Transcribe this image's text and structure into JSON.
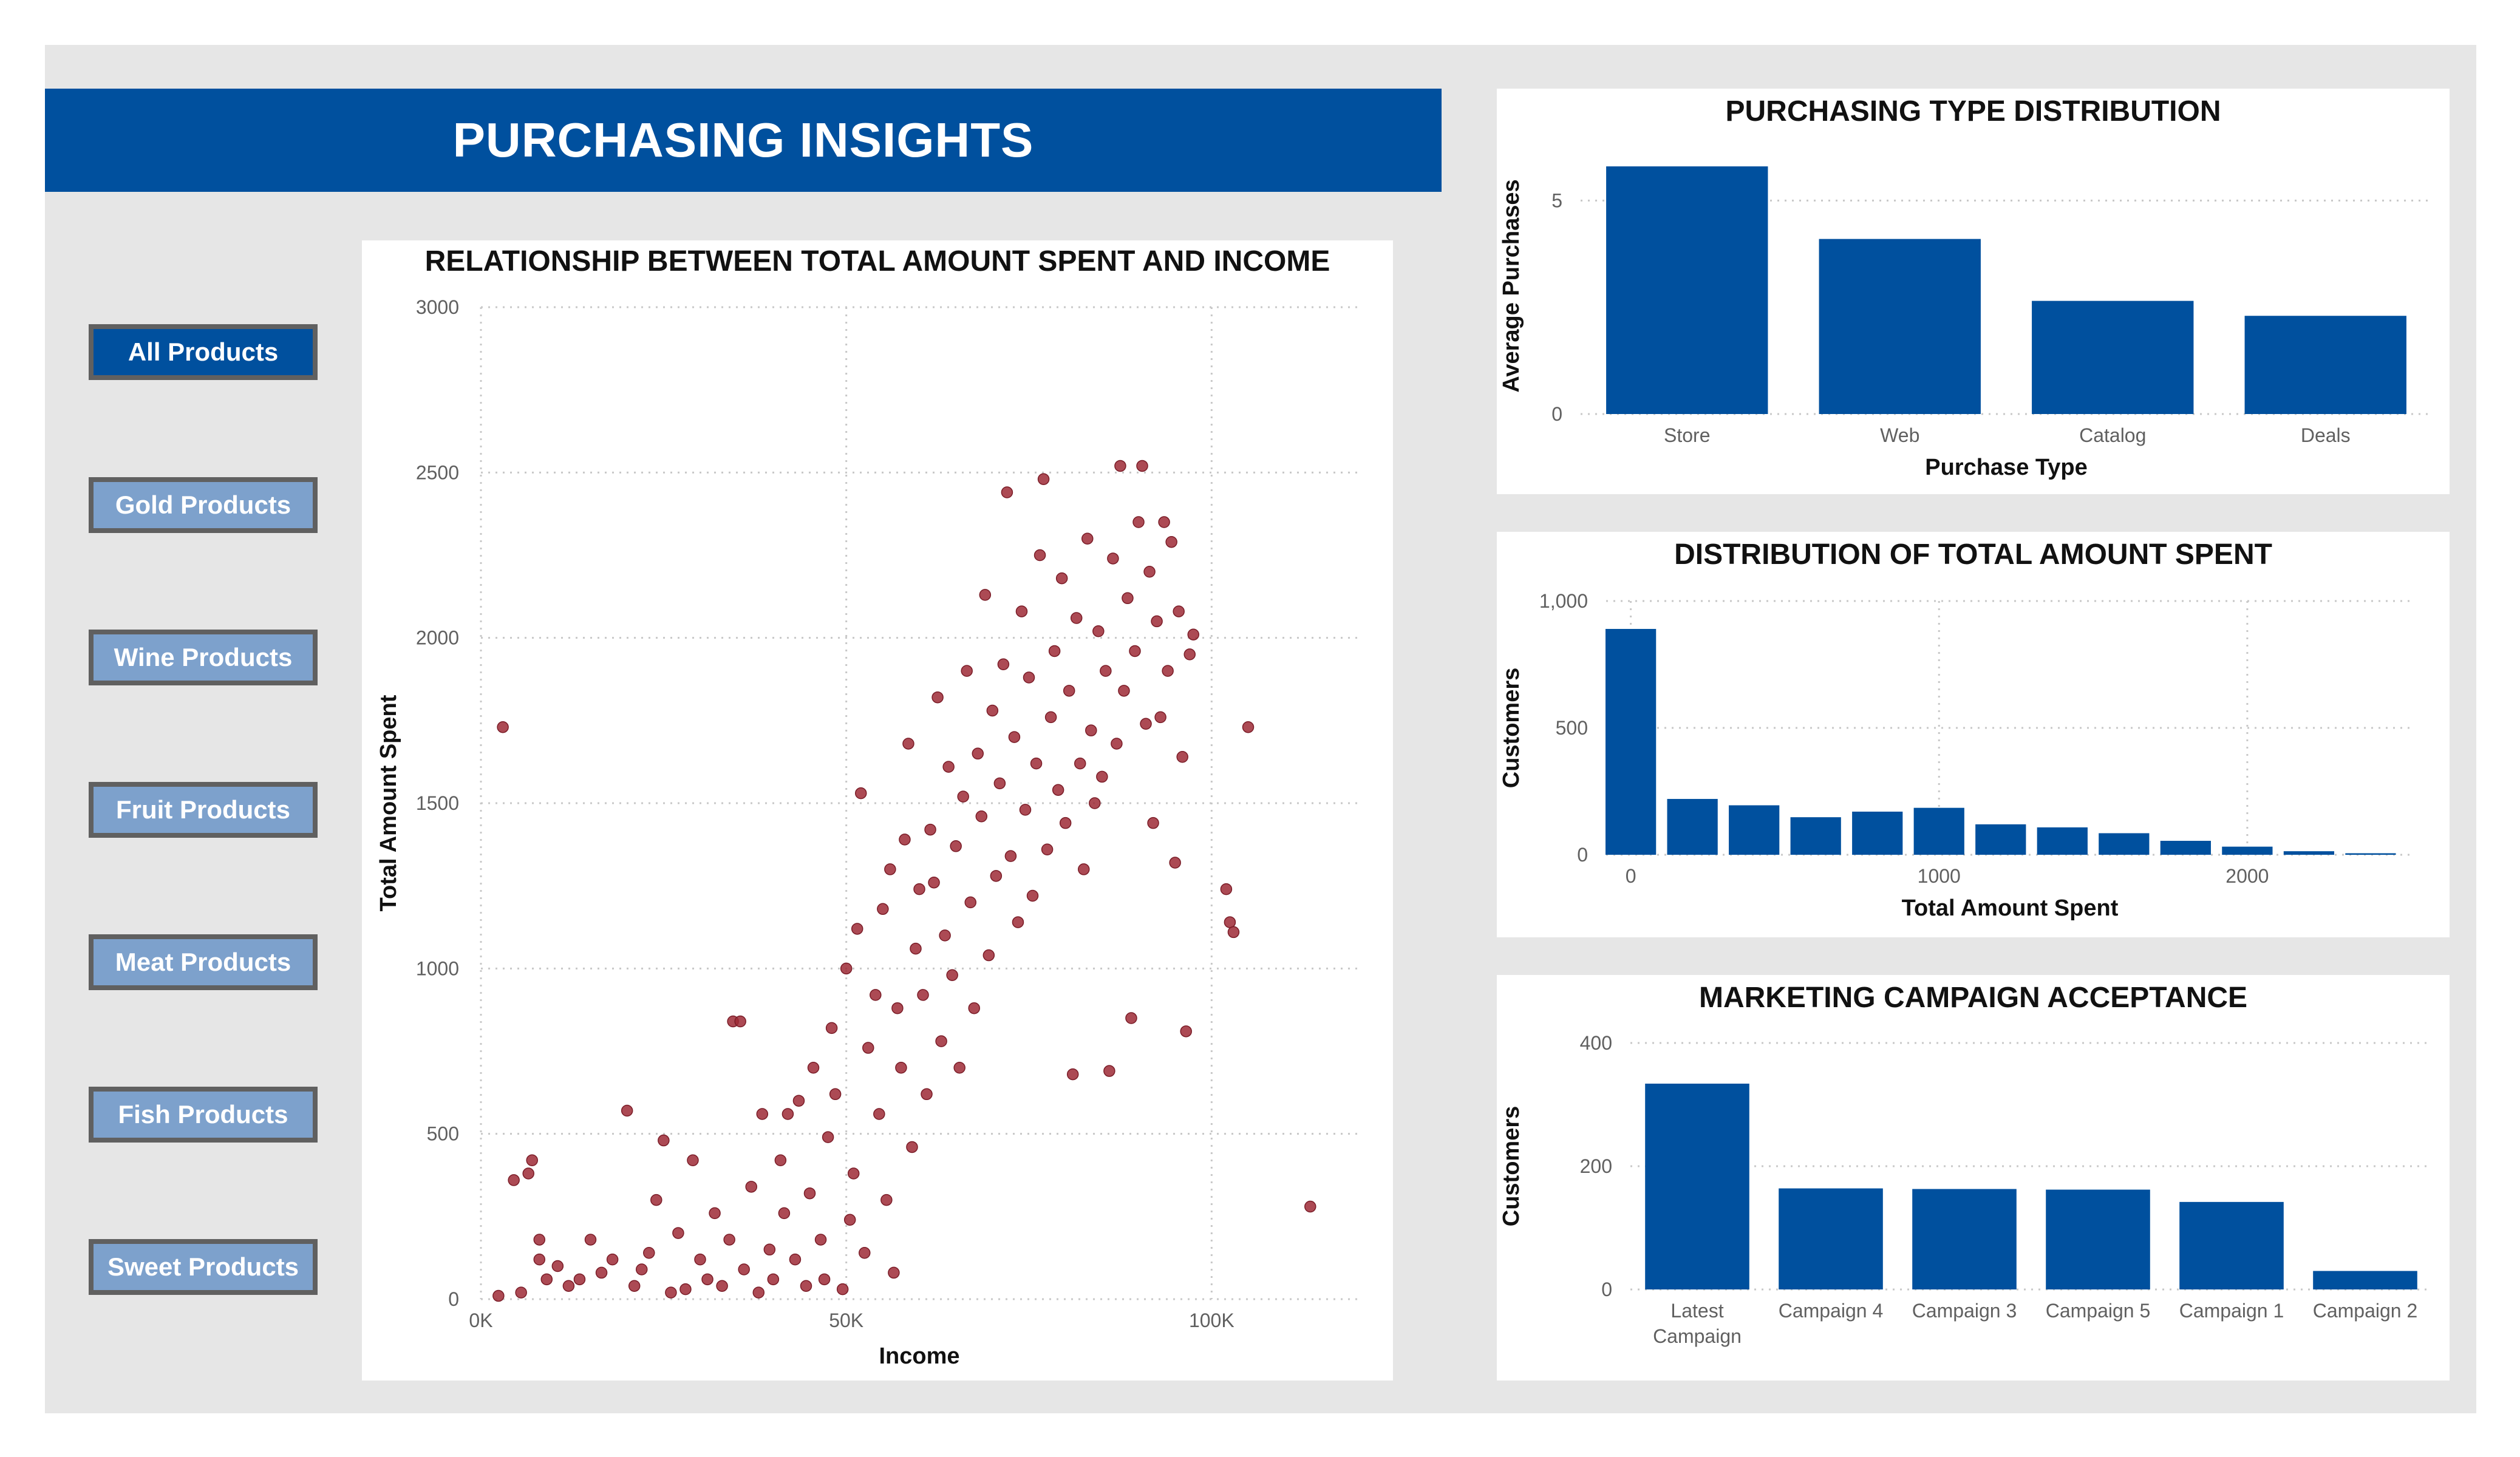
{
  "title": "PURCHASING INSIGHTS",
  "slicer": {
    "items": [
      {
        "label": "All Products",
        "selected": true
      },
      {
        "label": "Gold Products",
        "selected": false
      },
      {
        "label": "Wine Products",
        "selected": false
      },
      {
        "label": "Fruit Products",
        "selected": false
      },
      {
        "label": "Meat Products",
        "selected": false
      },
      {
        "label": "Fish Products",
        "selected": false
      },
      {
        "label": "Sweet Products",
        "selected": false
      }
    ]
  },
  "colors": {
    "accent": "#00509e",
    "button_inactive": "#7da1cc",
    "scatter": "#9e2a36",
    "background": "#e6e6e6"
  },
  "chart_data": [
    {
      "type": "scatter",
      "title": "RELATIONSHIP BETWEEN TOTAL AMOUNT SPENT AND INCOME",
      "xlabel": "Income",
      "ylabel": "Total Amount Spent",
      "xlim": [
        0,
        120000
      ],
      "ylim": [
        0,
        3000
      ],
      "xticks": [
        "0K",
        "50K",
        "100K"
      ],
      "yticks": [
        "0",
        "500",
        "1000",
        "1500",
        "2000",
        "2500",
        "3000"
      ],
      "grid": true,
      "points": [
        [
          2400,
          10
        ],
        [
          3000,
          1730
        ],
        [
          4500,
          360
        ],
        [
          5500,
          20
        ],
        [
          6500,
          380
        ],
        [
          7000,
          420
        ],
        [
          8000,
          120
        ],
        [
          8000,
          180
        ],
        [
          9000,
          60
        ],
        [
          10500,
          100
        ],
        [
          12000,
          40
        ],
        [
          13500,
          60
        ],
        [
          15000,
          180
        ],
        [
          16500,
          80
        ],
        [
          18000,
          120
        ],
        [
          20000,
          570
        ],
        [
          21000,
          40
        ],
        [
          22000,
          90
        ],
        [
          23000,
          140
        ],
        [
          24000,
          300
        ],
        [
          25000,
          480
        ],
        [
          26000,
          20
        ],
        [
          27000,
          200
        ],
        [
          28000,
          30
        ],
        [
          29000,
          420
        ],
        [
          30000,
          120
        ],
        [
          31000,
          60
        ],
        [
          32000,
          260
        ],
        [
          33000,
          40
        ],
        [
          34000,
          180
        ],
        [
          34500,
          840
        ],
        [
          35500,
          840
        ],
        [
          36000,
          90
        ],
        [
          37000,
          340
        ],
        [
          38000,
          20
        ],
        [
          38500,
          560
        ],
        [
          39500,
          150
        ],
        [
          40000,
          60
        ],
        [
          41000,
          420
        ],
        [
          41500,
          260
        ],
        [
          42000,
          560
        ],
        [
          43000,
          120
        ],
        [
          43500,
          600
        ],
        [
          44500,
          40
        ],
        [
          45000,
          320
        ],
        [
          45500,
          700
        ],
        [
          46500,
          180
        ],
        [
          47000,
          60
        ],
        [
          47500,
          490
        ],
        [
          48000,
          820
        ],
        [
          48500,
          620
        ],
        [
          49500,
          30
        ],
        [
          50000,
          1000
        ],
        [
          50500,
          240
        ],
        [
          51000,
          380
        ],
        [
          51500,
          1120
        ],
        [
          52000,
          1530
        ],
        [
          52500,
          140
        ],
        [
          53000,
          760
        ],
        [
          54000,
          920
        ],
        [
          54500,
          560
        ],
        [
          55000,
          1180
        ],
        [
          55500,
          300
        ],
        [
          56000,
          1300
        ],
        [
          56500,
          80
        ],
        [
          57000,
          880
        ],
        [
          57500,
          700
        ],
        [
          58000,
          1390
        ],
        [
          58500,
          1680
        ],
        [
          59000,
          460
        ],
        [
          59500,
          1060
        ],
        [
          60000,
          1240
        ],
        [
          60500,
          920
        ],
        [
          61000,
          620
        ],
        [
          61500,
          1420
        ],
        [
          62000,
          1260
        ],
        [
          62500,
          1820
        ],
        [
          63000,
          780
        ],
        [
          63500,
          1100
        ],
        [
          64000,
          1610
        ],
        [
          64500,
          980
        ],
        [
          65000,
          1370
        ],
        [
          65500,
          700
        ],
        [
          66000,
          1520
        ],
        [
          66500,
          1900
        ],
        [
          67000,
          1200
        ],
        [
          67500,
          880
        ],
        [
          68000,
          1650
        ],
        [
          68500,
          1460
        ],
        [
          69000,
          2130
        ],
        [
          69500,
          1040
        ],
        [
          70000,
          1780
        ],
        [
          70500,
          1280
        ],
        [
          71000,
          1560
        ],
        [
          71500,
          1920
        ],
        [
          72000,
          2440
        ],
        [
          72500,
          1340
        ],
        [
          73000,
          1700
        ],
        [
          73500,
          1140
        ],
        [
          74000,
          2080
        ],
        [
          74500,
          1480
        ],
        [
          75000,
          1880
        ],
        [
          75500,
          1220
        ],
        [
          76000,
          1620
        ],
        [
          76500,
          2250
        ],
        [
          77000,
          2480
        ],
        [
          77500,
          1360
        ],
        [
          78000,
          1760
        ],
        [
          78500,
          1960
        ],
        [
          79000,
          1540
        ],
        [
          79500,
          2180
        ],
        [
          80000,
          1440
        ],
        [
          80500,
          1840
        ],
        [
          81000,
          680
        ],
        [
          81500,
          2060
        ],
        [
          82000,
          1620
        ],
        [
          82500,
          1300
        ],
        [
          83000,
          2300
        ],
        [
          83500,
          1720
        ],
        [
          84000,
          1500
        ],
        [
          84500,
          2020
        ],
        [
          85000,
          1580
        ],
        [
          85500,
          1900
        ],
        [
          86000,
          690
        ],
        [
          86500,
          2240
        ],
        [
          87000,
          1680
        ],
        [
          87500,
          2520
        ],
        [
          88000,
          1840
        ],
        [
          88500,
          2120
        ],
        [
          89000,
          850
        ],
        [
          89500,
          1960
        ],
        [
          90000,
          2350
        ],
        [
          90500,
          2520
        ],
        [
          91000,
          1740
        ],
        [
          91500,
          2200
        ],
        [
          92000,
          1440
        ],
        [
          92500,
          2050
        ],
        [
          93000,
          1760
        ],
        [
          93500,
          2350
        ],
        [
          94000,
          1900
        ],
        [
          94500,
          2290
        ],
        [
          95000,
          1320
        ],
        [
          95500,
          2080
        ],
        [
          96000,
          1640
        ],
        [
          96500,
          810
        ],
        [
          97000,
          1950
        ],
        [
          97500,
          2010
        ],
        [
          102000,
          1240
        ],
        [
          102500,
          1140
        ],
        [
          103000,
          1110
        ],
        [
          105000,
          1730
        ],
        [
          113500,
          280
        ]
      ]
    },
    {
      "type": "bar",
      "title": "PURCHASING TYPE DISTRIBUTION",
      "xlabel": "Purchase Type",
      "ylabel": "Average Purchases",
      "categories": [
        "Store",
        "Web",
        "Catalog",
        "Deals"
      ],
      "values": [
        5.8,
        4.1,
        2.65,
        2.3
      ],
      "ylim": [
        0,
        6
      ],
      "yticks": [
        "0",
        "5"
      ],
      "grid": true
    },
    {
      "type": "bar",
      "title": "DISTRIBUTION OF TOTAL AMOUNT SPENT",
      "xlabel": "Total Amount Spent",
      "ylabel": "Customers",
      "bin_starts": [
        0,
        200,
        400,
        600,
        800,
        1000,
        1200,
        1400,
        1600,
        1800,
        2000,
        2200,
        2400
      ],
      "values": [
        890,
        220,
        195,
        148,
        170,
        185,
        120,
        108,
        85,
        55,
        32,
        14,
        6
      ],
      "xlim": [
        -80,
        2540
      ],
      "ylim": [
        0,
        1000
      ],
      "xticks": [
        "0",
        "1000",
        "2000"
      ],
      "yticks": [
        "0",
        "500",
        "1,000"
      ],
      "grid": true
    },
    {
      "type": "bar",
      "title": "MARKETING CAMPAIGN ACCEPTANCE",
      "xlabel": "",
      "ylabel": "Customers",
      "categories": [
        "Latest Campaign",
        "Campaign 4",
        "Campaign 3",
        "Campaign 5",
        "Campaign 1",
        "Campaign 2"
      ],
      "values": [
        334,
        164,
        163,
        162,
        142,
        30
      ],
      "ylim": [
        0,
        400
      ],
      "yticks": [
        "0",
        "200",
        "400"
      ],
      "grid": true
    }
  ]
}
